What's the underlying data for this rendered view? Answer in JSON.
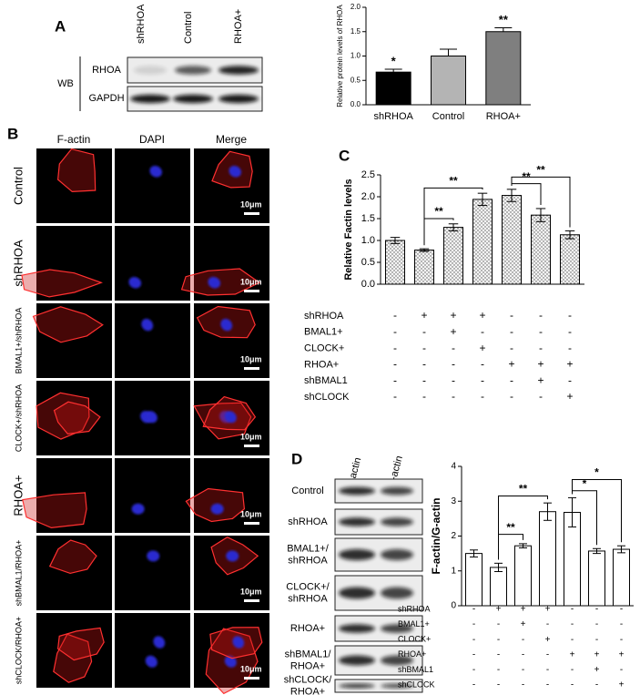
{
  "panel_labels": [
    "A",
    "B",
    "C",
    "D"
  ],
  "blot_a": {
    "method": "WB",
    "lanes": [
      "shRHOA",
      "Control",
      "RHOA+"
    ],
    "rows": [
      "RHOA",
      "GAPDH"
    ]
  },
  "panel_b": {
    "columns": [
      "F-actin",
      "DAPI",
      "Merge"
    ],
    "rows": [
      "Control",
      "shRHOA",
      "BMAL1+/shRHOA",
      "CLOCK+/shRHOA",
      "RHOA+",
      "shBMAL1/RHOA+",
      "shCLOCK/RHOA+"
    ],
    "scale_bar": "10μm"
  },
  "blot_d": {
    "lanes": [
      "F-actin",
      "G-actin"
    ],
    "rows": [
      [
        "Control"
      ],
      [
        "shRHOA"
      ],
      [
        "BMAL1+/",
        "shRHOA"
      ],
      [
        "CLOCK+/",
        "shRHOA"
      ],
      [
        "RHOA+"
      ],
      [
        "shBMAL1/",
        "RHOA+"
      ],
      [
        "shCLOCK/",
        "RHOA+"
      ]
    ]
  },
  "chart_data": [
    {
      "type": "bar",
      "y_label": "Relative protein levels of RHOA",
      "categories": [
        "shRHOA",
        "Control",
        "RHOA+"
      ],
      "values": [
        0.67,
        1.0,
        1.5
      ],
      "errors": [
        0.06,
        0.14,
        0.08
      ],
      "colors": [
        "#000000",
        "#b4b4b4",
        "#7f7f7f"
      ],
      "significance": [
        "*",
        null,
        "**"
      ],
      "ylim": [
        0,
        2
      ],
      "yticks": [
        {
          "value": 0,
          "label": "0.0"
        },
        0.5,
        {
          "value": 1,
          "label": "1.0"
        },
        1.5,
        {
          "value": 2,
          "label": "2.0"
        }
      ]
    },
    {
      "type": "bar",
      "y_label": "Relative Factin levels",
      "values": [
        1.0,
        0.78,
        1.3,
        1.94,
        2.03,
        1.58,
        1.13
      ],
      "errors": [
        0.07,
        0.03,
        0.08,
        0.14,
        0.14,
        0.15,
        0.09
      ],
      "color": "#f2f2f2",
      "pattern": "dots",
      "comparisons": [
        "**",
        "**",
        "**",
        "**"
      ],
      "ylim": [
        0,
        2.5
      ],
      "yticks": [
        {
          "value": 0,
          "label": "0.0"
        },
        0.5,
        {
          "value": 1,
          "label": "1.0"
        },
        1.5,
        {
          "value": 2,
          "label": "2.0"
        },
        2.5
      ],
      "conditions": [
        {
          "name": "shRHOA",
          "signs": [
            "-",
            "+",
            "+",
            "+",
            "-",
            "-",
            "-"
          ]
        },
        {
          "name": "BMAL1+",
          "signs": [
            "-",
            "-",
            "+",
            "-",
            "-",
            "-",
            "-"
          ]
        },
        {
          "name": "CLOCK+",
          "signs": [
            "-",
            "-",
            "-",
            "+",
            "-",
            "-",
            "-"
          ]
        },
        {
          "name": "RHOA+",
          "signs": [
            "-",
            "-",
            "-",
            "-",
            "+",
            "+",
            "+"
          ]
        },
        {
          "name": "shBMAL1",
          "signs": [
            "-",
            "-",
            "-",
            "-",
            "-",
            "+",
            "-"
          ]
        },
        {
          "name": "shCLOCK",
          "signs": [
            "-",
            "-",
            "-",
            "-",
            "-",
            "-",
            "+"
          ]
        }
      ]
    },
    {
      "type": "bar",
      "y_label": "F-actin/G-actin",
      "values": [
        1.5,
        1.1,
        1.72,
        2.7,
        2.68,
        1.57,
        1.62
      ],
      "errors": [
        0.1,
        0.12,
        0.06,
        0.25,
        0.42,
        0.07,
        0.1
      ],
      "color": "#ffffff",
      "comparisons": [
        "**",
        "**",
        "*",
        "*"
      ],
      "ylim": [
        0,
        4
      ],
      "yticks": [
        0,
        1,
        2,
        3,
        4
      ],
      "conditions": [
        {
          "name": "shRHOA",
          "signs": [
            "-",
            "+",
            "+",
            "+",
            "-",
            "-",
            "-"
          ]
        },
        {
          "name": "BMAL1+",
          "signs": [
            "-",
            "-",
            "+",
            "-",
            "-",
            "-",
            "-"
          ]
        },
        {
          "name": "CLOCK+",
          "signs": [
            "-",
            "-",
            "-",
            "+",
            "-",
            "-",
            "-"
          ]
        },
        {
          "name": "RHOA+",
          "signs": [
            "-",
            "-",
            "-",
            "-",
            "+",
            "+",
            "+"
          ]
        },
        {
          "name": "shBMAL1",
          "signs": [
            "-",
            "-",
            "-",
            "-",
            "-",
            "+",
            "-"
          ]
        },
        {
          "name": "shCLOCK",
          "signs": [
            "-",
            "-",
            "-",
            "-",
            "-",
            "-",
            "+"
          ]
        }
      ]
    }
  ]
}
